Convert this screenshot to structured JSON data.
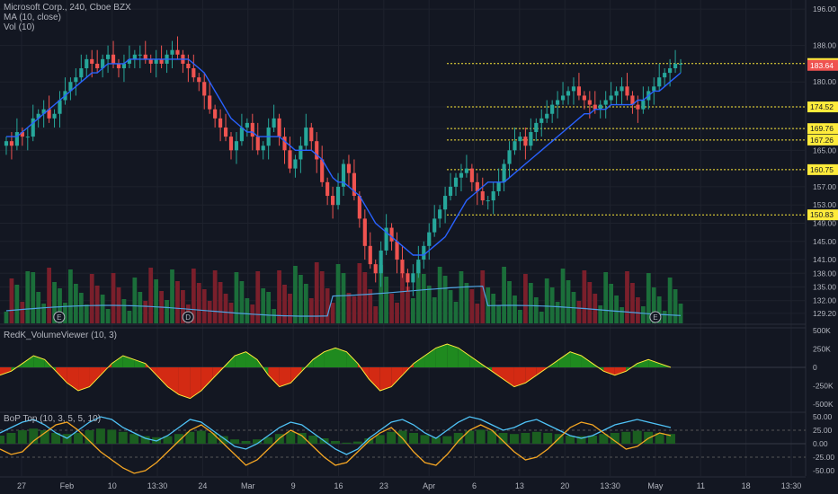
{
  "chart_data": [
    {
      "type": "candlestick",
      "panel": "price",
      "title": "Microsoft Corp., 240, Cboe BZX",
      "indicator_labels": [
        "MA (10, close)",
        "Vol (10)"
      ],
      "x_tick_labels": [
        "27",
        "Feb",
        "10",
        "13:30",
        "24",
        "Mar",
        "9",
        "16",
        "23",
        "Apr",
        "6",
        "13",
        "20",
        "13:30",
        "May",
        "11",
        "18",
        "13:30"
      ],
      "y_tick_labels": [
        "196.00",
        "188.00",
        "180.00",
        "174.52",
        "169.76",
        "165.00",
        "157.00",
        "153.00",
        "149.00",
        "145.00",
        "141.00",
        "138.00",
        "135.00",
        "132.00",
        "129.20"
      ],
      "ylim": [
        128,
        197
      ],
      "close_series": [
        167,
        166,
        169,
        168,
        168,
        172,
        173,
        174,
        172,
        173,
        176,
        178,
        180,
        181,
        183,
        185,
        184,
        183,
        185,
        186,
        184,
        183,
        184,
        185,
        186,
        186,
        185,
        184,
        185,
        184,
        186,
        187,
        186,
        184,
        183,
        181,
        180,
        177,
        174,
        172,
        170,
        168,
        165,
        167,
        170,
        171,
        168,
        165,
        166,
        170,
        172,
        168,
        165,
        161,
        163,
        166,
        170,
        167,
        163,
        158,
        155,
        153,
        157,
        162,
        160,
        155,
        150,
        144,
        140,
        138,
        143,
        148,
        145,
        141,
        138,
        136,
        138,
        141,
        144,
        147,
        150,
        152,
        155,
        157,
        159,
        160,
        161,
        158,
        156,
        154,
        154,
        156,
        158,
        162,
        165,
        167,
        168,
        166,
        169,
        171,
        172,
        173,
        175,
        176,
        177,
        178,
        179,
        177,
        176,
        175,
        174,
        175,
        176,
        177,
        178,
        179,
        177,
        175,
        174,
        176,
        178,
        179,
        181,
        182,
        183,
        184,
        184
      ],
      "ma_series": [
        168,
        168,
        168,
        169,
        170,
        171,
        172,
        173,
        174,
        175,
        176,
        177,
        178,
        179,
        180,
        181,
        182,
        182,
        183,
        184,
        184,
        184,
        184,
        185,
        185,
        185,
        185,
        185,
        185,
        185,
        185,
        185,
        185,
        185,
        185,
        184,
        183,
        182,
        180,
        178,
        176,
        174,
        172,
        171,
        170,
        169,
        169,
        168,
        168,
        168,
        168,
        168,
        167,
        166,
        165,
        165,
        165,
        165,
        164,
        163,
        161,
        159,
        158,
        158,
        157,
        156,
        155,
        153,
        151,
        149,
        148,
        147,
        146,
        145,
        144,
        143,
        142,
        142,
        142,
        143,
        144,
        145,
        146,
        148,
        150,
        152,
        154,
        155,
        156,
        157,
        158,
        158,
        158,
        158,
        159,
        160,
        161,
        162,
        163,
        164,
        165,
        166,
        167,
        168,
        169,
        170,
        171,
        172,
        173,
        173,
        174,
        174,
        174,
        175,
        175,
        175,
        175,
        175,
        176,
        176,
        177,
        178,
        178,
        179,
        180,
        181,
        182
      ],
      "horizontal_levels": [
        184.04,
        174.52,
        169.76,
        167.26,
        160.75,
        150.83
      ],
      "last_price_label": "183.64",
      "event_markers": [
        "E",
        "D",
        "E"
      ]
    },
    {
      "type": "area",
      "panel": "volume-viewer",
      "title": "RedK_VolumeViewer (10, 3)",
      "y_tick_labels": [
        "500K",
        "250K",
        "0",
        "-250K",
        "-500K"
      ],
      "ylim": [
        -520000,
        520000
      ],
      "values": [
        -100000,
        -50000,
        50000,
        150000,
        100000,
        -50000,
        -200000,
        -300000,
        -250000,
        -100000,
        50000,
        150000,
        100000,
        50000,
        -100000,
        -250000,
        -350000,
        -400000,
        -300000,
        -150000,
        0,
        150000,
        200000,
        100000,
        -100000,
        -250000,
        -200000,
        -50000,
        100000,
        200000,
        250000,
        200000,
        50000,
        -150000,
        -300000,
        -250000,
        -100000,
        50000,
        150000,
        250000,
        300000,
        250000,
        150000,
        50000,
        -50000,
        -150000,
        -250000,
        -200000,
        -100000,
        0,
        100000,
        200000,
        150000,
        50000,
        -50000,
        -100000,
        -50000,
        50000,
        100000,
        50000,
        0
      ]
    },
    {
      "type": "line",
      "panel": "bop",
      "title": "BoP Top (10, 3, 5, 5, 10)",
      "y_tick_labels": [
        "50.00",
        "25.00",
        "0.00",
        "-25.00",
        "-50.00"
      ],
      "ylim": [
        -60,
        60
      ],
      "series": [
        {
          "values": [
            20,
            30,
            40,
            45,
            35,
            20,
            10,
            25,
            40,
            50,
            45,
            30,
            20,
            10,
            5,
            15,
            30,
            45,
            40,
            25,
            10,
            -5,
            -10,
            0,
            15,
            30,
            40,
            35,
            20,
            5,
            -10,
            -20,
            -10,
            10,
            25,
            40,
            45,
            35,
            20,
            10,
            25,
            40,
            50,
            45,
            35,
            25,
            30,
            40,
            45,
            35,
            25,
            15,
            10,
            15,
            25,
            35,
            40,
            45,
            40,
            35,
            30
          ]
        },
        {
          "values": [
            -10,
            -20,
            -15,
            5,
            20,
            35,
            40,
            25,
            5,
            -15,
            -30,
            -45,
            -55,
            -50,
            -35,
            -15,
            5,
            25,
            35,
            20,
            0,
            -20,
            -40,
            -30,
            -10,
            10,
            25,
            15,
            -5,
            -25,
            -40,
            -35,
            -15,
            5,
            20,
            30,
            10,
            -15,
            -35,
            -40,
            -20,
            5,
            25,
            35,
            25,
            5,
            -15,
            -30,
            -25,
            -10,
            10,
            30,
            40,
            35,
            20,
            5,
            -10,
            -5,
            10,
            20,
            15
          ]
        },
        {
          "values": [
            15,
            20,
            25,
            28,
            25,
            20,
            18,
            20,
            25,
            28,
            26,
            22,
            18,
            14,
            12,
            14,
            18,
            22,
            24,
            20,
            14,
            8,
            5,
            8,
            12,
            18,
            22,
            20,
            15,
            10,
            5,
            2,
            4,
            10,
            16,
            22,
            24,
            20,
            16,
            12,
            14,
            20,
            24,
            26,
            24,
            20,
            18,
            20,
            22,
            20,
            18,
            15,
            14,
            15,
            18,
            20,
            22,
            24,
            22,
            20,
            18
          ]
        }
      ]
    }
  ],
  "colors": {
    "background": "#131722",
    "up": "#26a69a",
    "down": "#ef5350",
    "up_dark": "#1b6e3a",
    "down_dark": "#7a1f2b",
    "ma": "#2962ff",
    "vol_ma": "#4fa3e0",
    "level": "#ffeb3b",
    "grid": "#1e222d",
    "text": "#b2b5be",
    "vv_up": "#1f8a1f",
    "vv_down": "#d32a13",
    "bop_blue": "#4fc3f7",
    "bop_orange": "#f5a623",
    "bop_fill": "#1b5e20"
  }
}
